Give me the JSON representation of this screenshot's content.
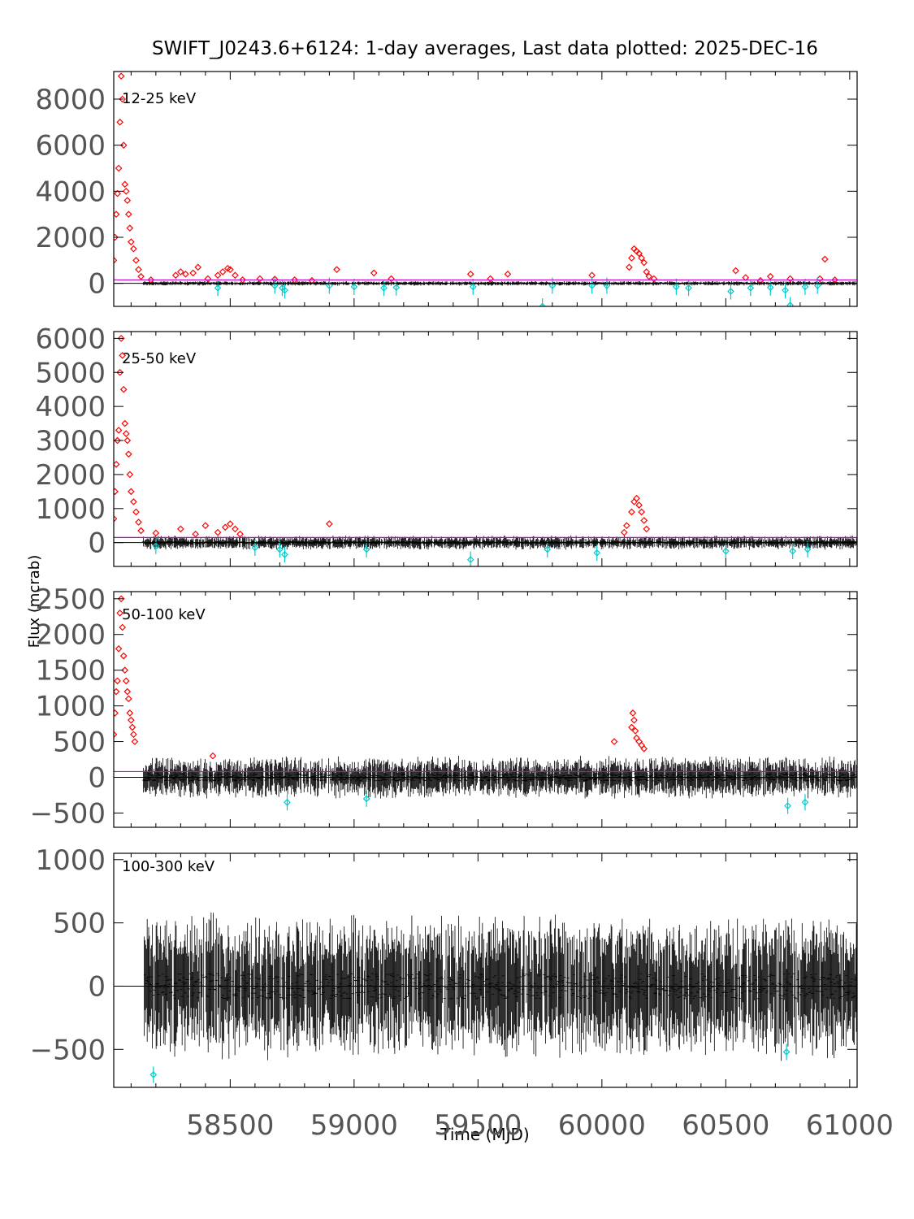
{
  "title": "SWIFT_J0243.6+6124:  1-day averages,  Last data plotted: 2025-DEC-16",
  "colors": {
    "black": "#000000",
    "significant": "#ff0000",
    "negative": "#00cccc",
    "threshold": "#cc00cc"
  },
  "chart_data": [
    {
      "type": "scatter",
      "band_label": "12-25 keV",
      "ylabel": "Flux (mcrab)",
      "xlabel": "",
      "xlim": [
        58030,
        61030
      ],
      "ylim": [
        -1000,
        9200
      ],
      "yticks": [
        0,
        2000,
        4000,
        6000,
        8000
      ],
      "threshold": 150,
      "outburst_points": [
        [
          58030,
          1000
        ],
        [
          58035,
          2000
        ],
        [
          58040,
          3000
        ],
        [
          58045,
          3900
        ],
        [
          58050,
          5000
        ],
        [
          58055,
          7000
        ],
        [
          58060,
          9000
        ],
        [
          58065,
          8000
        ],
        [
          58070,
          6000
        ],
        [
          58075,
          4300
        ],
        [
          58080,
          4000
        ],
        [
          58085,
          3600
        ],
        [
          58090,
          3000
        ],
        [
          58095,
          2400
        ],
        [
          58100,
          1800
        ],
        [
          58110,
          1500
        ],
        [
          58120,
          1000
        ],
        [
          58130,
          600
        ],
        [
          58140,
          300
        ],
        [
          58180,
          150
        ],
        [
          58280,
          350
        ],
        [
          58300,
          500
        ],
        [
          58320,
          400
        ],
        [
          58350,
          450
        ],
        [
          58370,
          700
        ],
        [
          58410,
          200
        ],
        [
          58450,
          350
        ],
        [
          58470,
          500
        ],
        [
          58490,
          650
        ],
        [
          58500,
          600
        ],
        [
          58520,
          350
        ],
        [
          58550,
          150
        ],
        [
          58620,
          200
        ],
        [
          58680,
          180
        ],
        [
          58760,
          150
        ],
        [
          58830,
          120
        ],
        [
          58930,
          600
        ],
        [
          59080,
          450
        ],
        [
          59150,
          200
        ],
        [
          59470,
          400
        ],
        [
          59550,
          200
        ],
        [
          59620,
          400
        ],
        [
          59960,
          350
        ],
        [
          60110,
          700
        ],
        [
          60120,
          1100
        ],
        [
          60130,
          1500
        ],
        [
          60140,
          1400
        ],
        [
          60150,
          1300
        ],
        [
          60160,
          1100
        ],
        [
          60170,
          900
        ],
        [
          60180,
          500
        ],
        [
          60190,
          300
        ],
        [
          60210,
          200
        ],
        [
          60540,
          550
        ],
        [
          60580,
          250
        ],
        [
          60640,
          120
        ],
        [
          60680,
          300
        ],
        [
          60760,
          200
        ],
        [
          60880,
          200
        ],
        [
          60900,
          1050
        ],
        [
          60940,
          150
        ]
      ],
      "negative_points": [
        [
          58450,
          -200
        ],
        [
          58680,
          -100
        ],
        [
          58710,
          -200
        ],
        [
          58720,
          -300
        ],
        [
          58900,
          -100
        ],
        [
          59000,
          -150
        ],
        [
          59120,
          -200
        ],
        [
          59170,
          -180
        ],
        [
          59480,
          -150
        ],
        [
          59760,
          -1000
        ],
        [
          59800,
          -100
        ],
        [
          59960,
          -100
        ],
        [
          60020,
          -100
        ],
        [
          60300,
          -150
        ],
        [
          60350,
          -200
        ],
        [
          60520,
          -350
        ],
        [
          60600,
          -200
        ],
        [
          60680,
          -180
        ],
        [
          60740,
          -300
        ],
        [
          60760,
          -950
        ],
        [
          60820,
          -150
        ],
        [
          60870,
          -100
        ]
      ]
    },
    {
      "type": "scatter",
      "band_label": "25-50 keV",
      "xlim": [
        58030,
        61030
      ],
      "ylim": [
        -700,
        6200
      ],
      "yticks": [
        0,
        1000,
        2000,
        3000,
        4000,
        5000,
        6000
      ],
      "threshold": 150,
      "outburst_points": [
        [
          58030,
          700
        ],
        [
          58035,
          1500
        ],
        [
          58040,
          2300
        ],
        [
          58045,
          3000
        ],
        [
          58050,
          3300
        ],
        [
          58055,
          5000
        ],
        [
          58060,
          6000
        ],
        [
          58065,
          5500
        ],
        [
          58070,
          4500
        ],
        [
          58075,
          3500
        ],
        [
          58080,
          3200
        ],
        [
          58085,
          3000
        ],
        [
          58090,
          2600
        ],
        [
          58095,
          2000
        ],
        [
          58100,
          1500
        ],
        [
          58110,
          1200
        ],
        [
          58120,
          900
        ],
        [
          58130,
          600
        ],
        [
          58140,
          350
        ],
        [
          58200,
          280
        ],
        [
          58300,
          400
        ],
        [
          58360,
          250
        ],
        [
          58400,
          500
        ],
        [
          58450,
          300
        ],
        [
          58480,
          450
        ],
        [
          58500,
          550
        ],
        [
          58520,
          400
        ],
        [
          58540,
          250
        ],
        [
          58900,
          550
        ],
        [
          60090,
          300
        ],
        [
          60100,
          500
        ],
        [
          60120,
          900
        ],
        [
          60130,
          1200
        ],
        [
          60140,
          1300
        ],
        [
          60150,
          1100
        ],
        [
          60160,
          900
        ],
        [
          60170,
          650
        ],
        [
          60180,
          400
        ]
      ],
      "negative_points": [
        [
          58200,
          -100
        ],
        [
          58600,
          -150
        ],
        [
          58700,
          -200
        ],
        [
          58720,
          -350
        ],
        [
          59050,
          -200
        ],
        [
          59470,
          -500
        ],
        [
          59780,
          -200
        ],
        [
          59980,
          -300
        ],
        [
          60500,
          -250
        ],
        [
          60770,
          -250
        ],
        [
          60830,
          -200
        ]
      ]
    },
    {
      "type": "scatter",
      "band_label": "50-100 keV",
      "xlim": [
        58030,
        61030
      ],
      "ylim": [
        -700,
        2600
      ],
      "yticks": [
        -500,
        0,
        500,
        1000,
        1500,
        2000,
        2500
      ],
      "threshold": 80,
      "outburst_points": [
        [
          58030,
          600
        ],
        [
          58035,
          900
        ],
        [
          58040,
          1200
        ],
        [
          58045,
          1350
        ],
        [
          58050,
          1800
        ],
        [
          58055,
          2300
        ],
        [
          58060,
          2500
        ],
        [
          58065,
          2100
        ],
        [
          58070,
          1700
        ],
        [
          58075,
          1500
        ],
        [
          58080,
          1350
        ],
        [
          58085,
          1200
        ],
        [
          58090,
          1100
        ],
        [
          58095,
          900
        ],
        [
          58100,
          800
        ],
        [
          58105,
          700
        ],
        [
          58110,
          600
        ],
        [
          58115,
          500
        ],
        [
          58430,
          300
        ],
        [
          60050,
          500
        ],
        [
          60120,
          700
        ],
        [
          60125,
          900
        ],
        [
          60130,
          800
        ],
        [
          60135,
          650
        ],
        [
          60140,
          550
        ],
        [
          60150,
          500
        ],
        [
          60160,
          450
        ],
        [
          60170,
          400
        ]
      ],
      "negative_points": [
        [
          58730,
          -350
        ],
        [
          59050,
          -300
        ],
        [
          60750,
          -400
        ],
        [
          60820,
          -350
        ]
      ]
    },
    {
      "type": "scatter",
      "band_label": "100-300 keV",
      "xlim": [
        58030,
        61030
      ],
      "ylim": [
        -800,
        1050
      ],
      "yticks": [
        -500,
        0,
        500,
        1000
      ],
      "threshold": 0,
      "outburst_points": [],
      "negative_points": [
        [
          58190,
          -700
        ],
        [
          60745,
          -520
        ]
      ]
    }
  ],
  "x_axis": {
    "label": "Time (MJD)",
    "ticks": [
      58500,
      59000,
      59500,
      60000,
      60500,
      61000
    ]
  }
}
